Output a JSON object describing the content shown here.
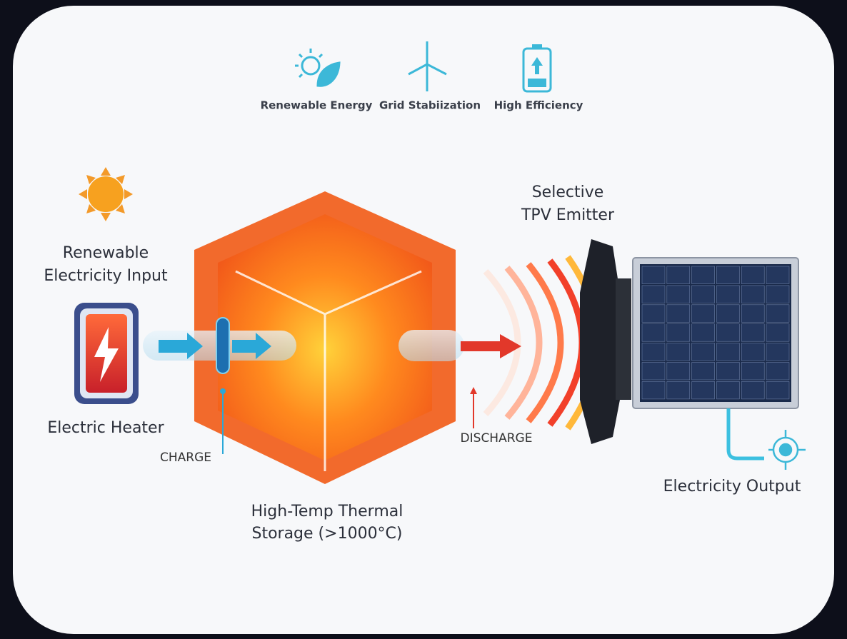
{
  "benefits": [
    "Renewable Energy",
    "Grid Stabiization",
    "High Efficiency"
  ],
  "input": {
    "label": [
      "Renewable",
      "Electricity Input"
    ]
  },
  "heater": {
    "label": "Electric Heater"
  },
  "charge": {
    "label": "CHARGE"
  },
  "storage": {
    "label": [
      "High-Temp Thermal",
      "Storage (>1000°C)"
    ]
  },
  "discharge": {
    "label": "DISCHARGE"
  },
  "emitter": {
    "label": [
      "Selective",
      "TPV Emitter"
    ]
  },
  "output": {
    "label": "Electricity Output"
  }
}
